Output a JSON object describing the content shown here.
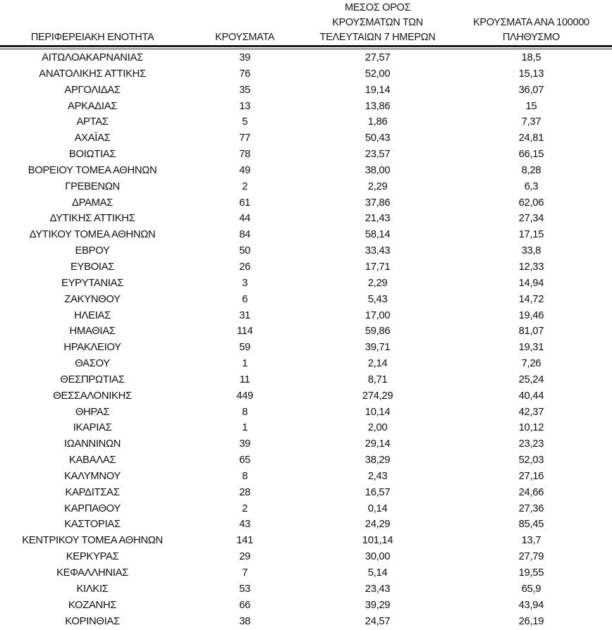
{
  "chart_data": {
    "type": "table",
    "columns": [
      {
        "id": "region",
        "lines": [
          "ΠΕΡΙΦΕΡΕΙΑΚΗ ΕΝΟΤΗΤΑ"
        ]
      },
      {
        "id": "cases",
        "lines": [
          "ΚΡΟΥΣΜΑΤΑ"
        ]
      },
      {
        "id": "avg_7day",
        "lines": [
          "ΜΕΣΟΣ ΟΡΟΣ",
          "ΚΡΟΥΣΜΑΤΩΝ ΤΩΝ",
          "ΤΕΛΕΥΤΑΙΩΝ 7 ΗΜΕΡΩΝ"
        ]
      },
      {
        "id": "per_100k",
        "lines": [
          "ΚΡΟΥΣΜΑΤΑ ΑΝΑ 100000",
          "ΠΛΗΘΥΣΜΟ"
        ]
      }
    ],
    "rows": [
      {
        "region": "ΑΙΤΩΛΟΑΚΑΡΝΑΝΙΑΣ",
        "cases": "39",
        "avg_7day": "27,57",
        "per_100k": "18,5"
      },
      {
        "region": "ΑΝΑΤΟΛΙΚΗΣ ΑΤΤΙΚΗΣ",
        "cases": "76",
        "avg_7day": "52,00",
        "per_100k": "15,13"
      },
      {
        "region": "ΑΡΓΟΛΙΔΑΣ",
        "cases": "35",
        "avg_7day": "19,14",
        "per_100k": "36,07"
      },
      {
        "region": "ΑΡΚΑΔΙΑΣ",
        "cases": "13",
        "avg_7day": "13,86",
        "per_100k": "15"
      },
      {
        "region": "ΑΡΤΑΣ",
        "cases": "5",
        "avg_7day": "1,86",
        "per_100k": "7,37"
      },
      {
        "region": "ΑΧΑΪΑΣ",
        "cases": "77",
        "avg_7day": "50,43",
        "per_100k": "24,81"
      },
      {
        "region": "ΒΟΙΩΤΙΑΣ",
        "cases": "78",
        "avg_7day": "23,57",
        "per_100k": "66,15"
      },
      {
        "region": "ΒΟΡΕΙΟΥ ΤΟΜΕΑ ΑΘΗΝΩΝ",
        "cases": "49",
        "avg_7day": "38,00",
        "per_100k": "8,28"
      },
      {
        "region": "ΓΡΕΒΕΝΩΝ",
        "cases": "2",
        "avg_7day": "2,29",
        "per_100k": "6,3"
      },
      {
        "region": "ΔΡΑΜΑΣ",
        "cases": "61",
        "avg_7day": "37,86",
        "per_100k": "62,06"
      },
      {
        "region": "ΔΥΤΙΚΗΣ ΑΤΤΙΚΗΣ",
        "cases": "44",
        "avg_7day": "21,43",
        "per_100k": "27,34"
      },
      {
        "region": "ΔΥΤΙΚΟΥ ΤΟΜΕΑ ΑΘΗΝΩΝ",
        "cases": "84",
        "avg_7day": "58,14",
        "per_100k": "17,15"
      },
      {
        "region": "ΕΒΡΟΥ",
        "cases": "50",
        "avg_7day": "33,43",
        "per_100k": "33,8"
      },
      {
        "region": "ΕΥΒΟΙΑΣ",
        "cases": "26",
        "avg_7day": "17,71",
        "per_100k": "12,33"
      },
      {
        "region": "ΕΥΡΥΤΑΝΙΑΣ",
        "cases": "3",
        "avg_7day": "2,29",
        "per_100k": "14,94"
      },
      {
        "region": "ΖΑΚΥΝΘΟΥ",
        "cases": "6",
        "avg_7day": "5,43",
        "per_100k": "14,72"
      },
      {
        "region": "ΗΛΕΙΑΣ",
        "cases": "31",
        "avg_7day": "17,00",
        "per_100k": "19,46"
      },
      {
        "region": "ΗΜΑΘΙΑΣ",
        "cases": "114",
        "avg_7day": "59,86",
        "per_100k": "81,07"
      },
      {
        "region": "ΗΡΑΚΛΕΙΟΥ",
        "cases": "59",
        "avg_7day": "39,71",
        "per_100k": "19,31"
      },
      {
        "region": "ΘΑΣΟΥ",
        "cases": "1",
        "avg_7day": "2,14",
        "per_100k": "7,26"
      },
      {
        "region": "ΘΕΣΠΡΩΤΙΑΣ",
        "cases": "11",
        "avg_7day": "8,71",
        "per_100k": "25,24"
      },
      {
        "region": "ΘΕΣΣΑΛΟΝΙΚΗΣ",
        "cases": "449",
        "avg_7day": "274,29",
        "per_100k": "40,44"
      },
      {
        "region": "ΘΗΡΑΣ",
        "cases": "8",
        "avg_7day": "10,14",
        "per_100k": "42,37"
      },
      {
        "region": "ΙΚΑΡΙΑΣ",
        "cases": "1",
        "avg_7day": "2,00",
        "per_100k": "10,12"
      },
      {
        "region": "ΙΩΑΝΝΙΝΩΝ",
        "cases": "39",
        "avg_7day": "29,14",
        "per_100k": "23,23"
      },
      {
        "region": "ΚΑΒΑΛΑΣ",
        "cases": "65",
        "avg_7day": "38,29",
        "per_100k": "52,03"
      },
      {
        "region": "ΚΑΛΥΜΝΟΥ",
        "cases": "8",
        "avg_7day": "2,43",
        "per_100k": "27,16"
      },
      {
        "region": "ΚΑΡΔΙΤΣΑΣ",
        "cases": "28",
        "avg_7day": "16,57",
        "per_100k": "24,66"
      },
      {
        "region": "ΚΑΡΠΑΘΟΥ",
        "cases": "2",
        "avg_7day": "0,14",
        "per_100k": "27,36"
      },
      {
        "region": "ΚΑΣΤΟΡΙΑΣ",
        "cases": "43",
        "avg_7day": "24,29",
        "per_100k": "85,45"
      },
      {
        "region": "ΚΕΝΤΡΙΚΟΥ ΤΟΜΕΑ ΑΘΗΝΩΝ",
        "cases": "141",
        "avg_7day": "101,14",
        "per_100k": "13,7"
      },
      {
        "region": "ΚΕΡΚΥΡΑΣ",
        "cases": "29",
        "avg_7day": "30,00",
        "per_100k": "27,79"
      },
      {
        "region": "ΚΕΦΑΛΛΗΝΙΑΣ",
        "cases": "7",
        "avg_7day": "5,14",
        "per_100k": "19,55"
      },
      {
        "region": "ΚΙΛΚΙΣ",
        "cases": "53",
        "avg_7day": "23,43",
        "per_100k": "65,9"
      },
      {
        "region": "ΚΟΖΑΝΗΣ",
        "cases": "66",
        "avg_7day": "39,29",
        "per_100k": "43,94"
      },
      {
        "region": "ΚΟΡΙΝΘΙΑΣ",
        "cases": "38",
        "avg_7day": "24,57",
        "per_100k": "26,19"
      }
    ]
  }
}
